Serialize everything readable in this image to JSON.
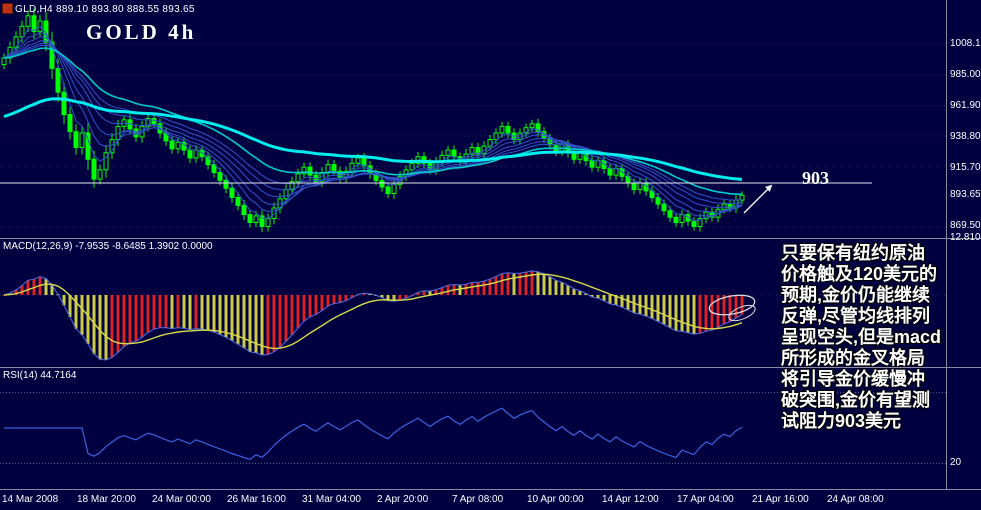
{
  "window": {
    "title": "GLD,H4 889.10 893.80 888.55 893.65",
    "big_label": "GOLD 4h"
  },
  "colors": {
    "background": "#000040",
    "candle": "#00ff00",
    "ma_fast": "#3353cc",
    "ma_mid": "#00cccc",
    "ma_slow": "#00eeee",
    "macd_line": "#4f6fe8",
    "macd_signal": "#d8d84a",
    "hist_up": "#dd2222",
    "hist_down": "#cccc44",
    "rsi_line": "#3a62e0",
    "rsi_level": "#606090",
    "grid": "#2a2a66",
    "separator": "#8a8aa0",
    "level_line": "#e6e6ee",
    "axis_text": "#ffffff",
    "annotation_text": "#ffffff"
  },
  "chart_data": [
    {
      "type": "candlestick",
      "symbol": "GLD",
      "timeframe": "H4",
      "open": 889.1,
      "high": 893.8,
      "low": 888.55,
      "close": 893.65,
      "current_price": 893.65,
      "resistance_level": 903,
      "ylim": [
        862,
        1042
      ],
      "yticks": [
        1008.1,
        985.0,
        961.9,
        938.8,
        915.7,
        869.5
      ],
      "closes": [
        998,
        1006,
        1014,
        1022,
        1030,
        1018,
        1026,
        1010,
        990,
        972,
        955,
        942,
        930,
        941,
        921,
        906,
        913,
        926,
        936,
        946,
        951,
        944,
        938,
        946,
        952,
        948,
        941,
        935,
        929,
        934,
        928,
        922,
        928,
        923,
        917,
        911,
        905,
        899,
        892,
        886,
        879,
        873,
        878,
        870,
        876,
        884,
        891,
        898,
        904,
        910,
        915,
        909,
        904,
        911,
        917,
        912,
        907,
        912,
        918,
        922,
        916,
        910,
        905,
        900,
        895,
        902,
        908,
        913,
        918,
        923,
        918,
        913,
        919,
        924,
        928,
        923,
        919,
        925,
        930,
        925,
        931,
        936,
        941,
        946,
        941,
        936,
        941,
        945,
        948,
        942,
        937,
        932,
        927,
        932,
        926,
        921,
        926,
        920,
        915,
        920,
        914,
        909,
        914,
        908,
        903,
        898,
        903,
        897,
        892,
        887,
        882,
        877,
        873,
        879,
        874,
        870,
        876,
        881,
        877,
        883,
        887,
        884,
        890,
        893.65
      ],
      "overlays": [
        {
          "name": "EMA fan (fast)",
          "color_key": "ma_fast"
        },
        {
          "name": "EMA medium",
          "color_key": "ma_mid"
        },
        {
          "name": "EMA slow",
          "color_key": "ma_slow"
        }
      ]
    },
    {
      "type": "macd",
      "label": "MACD(12,26,9) -7.9535 -8.6485 1.3902 0.0000",
      "params": [
        12,
        26,
        9
      ],
      "displayed_values": [
        -7.9535,
        -8.6485,
        1.3902,
        0.0
      ],
      "scale_max": 12.8109
    },
    {
      "type": "rsi",
      "label": "RSI(14) 44.7164",
      "period": 14,
      "current": 44.7164,
      "levels": [
        20,
        80
      ]
    }
  ],
  "axes": {
    "price": [
      "1008.10",
      "985.00",
      "961.90",
      "938.80",
      "915.70",
      "869.50"
    ],
    "current_price": "893.65",
    "macd_scale": "12.8109",
    "rsi_scale": "20"
  },
  "time_axis": [
    "14 Mar 2008",
    "18 Mar 20:00",
    "24 Mar 00:00",
    "26 Mar 16:00",
    "31 Mar 04:00",
    "2 Apr 20:00",
    "7 Apr 08:00",
    "10 Apr 00:00",
    "14 Apr 12:00",
    "17 Apr 04:00",
    "21 Apr 16:00",
    "24 Apr 08:00"
  ],
  "annotation": {
    "level_text": "903",
    "lines": [
      "只要保有纽约原油",
      "价格触及120美元的",
      "预期,金价仍能继续",
      "反弹,尽管均线排列",
      "呈现空头,但是macd",
      "所形成的金叉格局",
      "将引导金价缓慢冲",
      "破突围,金价有望测",
      "试阻力903美元"
    ]
  }
}
